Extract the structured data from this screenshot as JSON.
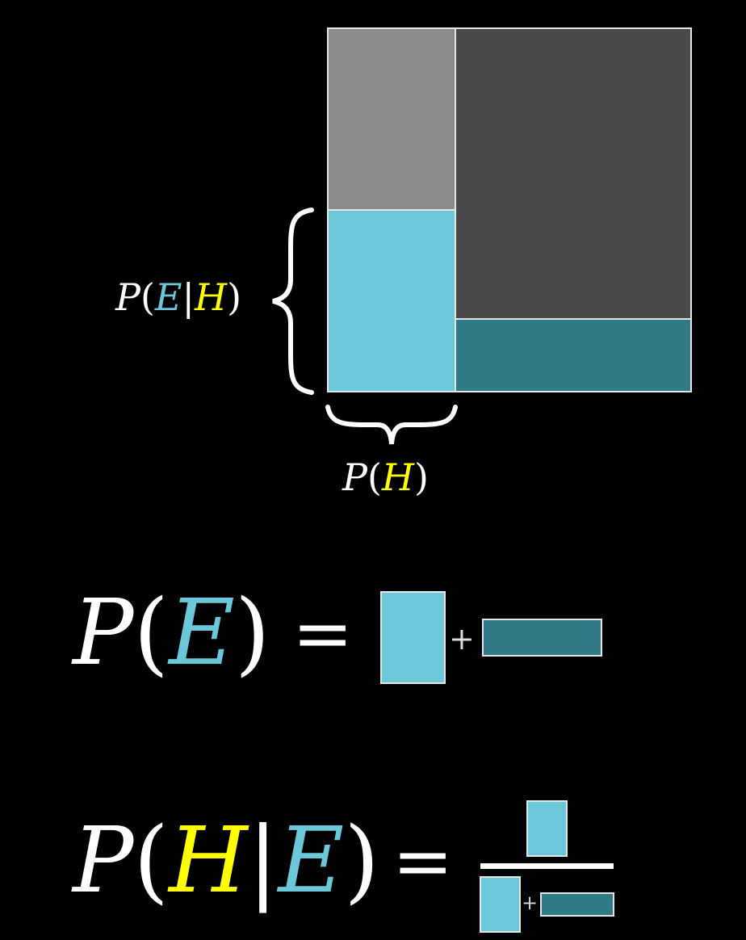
{
  "colors": {
    "background": "#000000",
    "evidence": "#6bc8d8",
    "hypothesis": "#ffff00",
    "white": "#ffffff",
    "box_border": "#e6e6e6",
    "gray_light": "#8b8b8b",
    "gray_dark": "#494949",
    "teal_dark": "#2f7a86",
    "cyan": "#6bc8d8"
  },
  "diagram": {
    "regions": [
      {
        "name": "hypothesis-not-evidence",
        "color": "gray_light"
      },
      {
        "name": "hypothesis-and-evidence",
        "color": "cyan"
      },
      {
        "name": "not-hypothesis-not-evidence",
        "color": "gray_dark"
      },
      {
        "name": "not-hypothesis-and-evidence",
        "color": "teal_dark"
      }
    ],
    "label_p_e_given_h": {
      "p": "P",
      "open": "(",
      "e": "E",
      "bar": "|",
      "h": "H",
      "close": ")"
    },
    "label_p_h": {
      "p": "P",
      "open": "(",
      "h": "H",
      "close": ")"
    }
  },
  "equation_pe": {
    "p": "P",
    "open": "(",
    "e": "E",
    "close": ")",
    "equals": "=",
    "plus": "+"
  },
  "equation_phe": {
    "p": "P",
    "open": "(",
    "h": "H",
    "bar": "|",
    "e": "E",
    "close": ")",
    "equals": "=",
    "plus": "+"
  }
}
